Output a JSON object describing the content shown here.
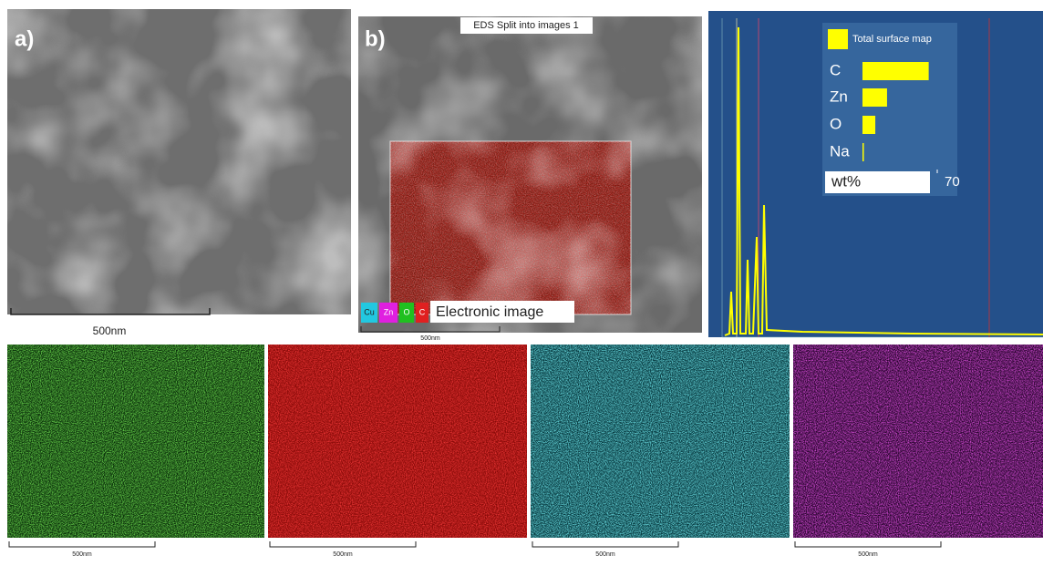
{
  "panel_a": {
    "label": "a)",
    "scale_bar": "500nm"
  },
  "panel_b": {
    "label": "b)",
    "title": "EDS Split into images 1",
    "legend": [
      "Cu",
      "Zn",
      "O",
      "C"
    ],
    "caption": "Electronic image",
    "scale_bar": "500nm"
  },
  "chart_data": {
    "type": "bar",
    "orientation": "horizontal",
    "legend": "Total surface map",
    "color": "#ffff00",
    "categories": [
      "C",
      "Zn",
      "O",
      "Na"
    ],
    "values": [
      62,
      23,
      12,
      1
    ],
    "xlabel": "wt%",
    "xlim": [
      0,
      70
    ],
    "xticks": [
      70
    ]
  },
  "maps": [
    {
      "element": "O",
      "scale_bar": "500nm"
    },
    {
      "element": "C",
      "scale_bar": "500nm"
    },
    {
      "element": "Cu",
      "scale_bar": "500nm"
    },
    {
      "element": "Zn",
      "scale_bar": "500nm"
    }
  ]
}
